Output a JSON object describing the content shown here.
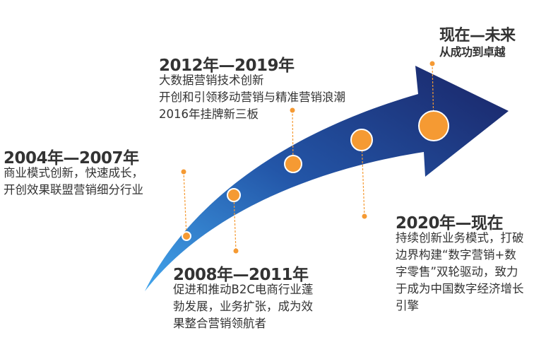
{
  "colors": {
    "arrow_start": "#42a5ec",
    "arrow_end": "#1a2466",
    "milestone": "#f59a33"
  },
  "future": {
    "title": "现在—未来",
    "subtitle": "从成功到卓越"
  },
  "periods": [
    {
      "title": "2004年—2007年",
      "lines": [
        "商业模式创新，快速成长，",
        "开创效果联盟营销细分行业"
      ]
    },
    {
      "title": "2008年—2011年",
      "lines": [
        "促进和推动B2C电商行业蓬",
        "勃发展，业务扩张，成为效",
        "果整合营销领航者"
      ]
    },
    {
      "title": "2012年—2019年",
      "lines": [
        "大数据营销技术创新",
        "开创和引领移动营销与精准营销浪潮",
        "2016年挂牌新三板"
      ]
    },
    {
      "title": "2020年—现在",
      "lines": [
        "持续创新业务模式，打破",
        "边界构建“数字营销+数",
        "字零售”双轮驱动，致力",
        "于成为中国数字经济增长",
        "引擎"
      ]
    }
  ]
}
